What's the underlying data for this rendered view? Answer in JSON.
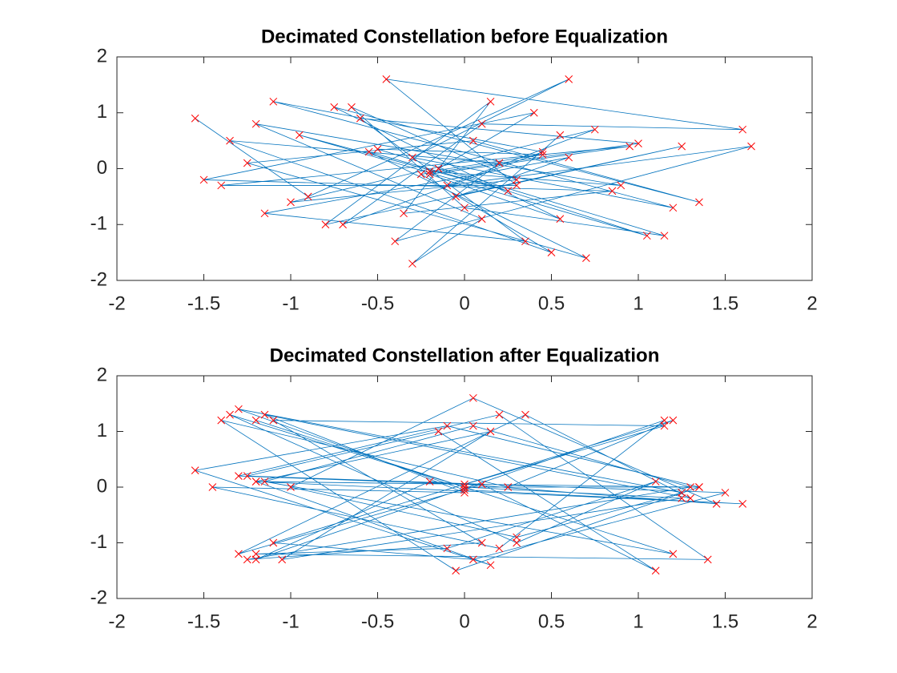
{
  "chart_data": [
    {
      "type": "line",
      "title": "Decimated Constellation before Equalization",
      "x": [
        -1.55,
        -0.9,
        0.6,
        -0.3,
        1.2,
        -1.1,
        0.45,
        -0.7,
        0.1,
        1.6,
        -0.45,
        0.3,
        -1.4,
        0.95,
        -0.2,
        0.55,
        -0.75,
        1.35,
        0.05,
        -1.25,
        0.7,
        -0.55,
        0.25,
        -0.95,
        1.05,
        -0.15,
        0.4,
        -1.5,
        0.85,
        -0.35,
        0.15,
        -0.8,
        1.25,
        -0.05,
        0.6,
        -1.15,
        0.35,
        -0.6,
        1.0,
        -0.25,
        0.5,
        -1.35,
        0.2,
        -0.4,
        1.65,
        -0.1,
        0.75,
        -1.0,
        0.3,
        -0.65,
        0.0,
        1.15,
        -0.5,
        0.45,
        -0.2,
        0.9,
        -1.2,
        0.1,
        -0.3,
        0.55
      ],
      "series": [
        {
          "color": "#0072bd",
          "marker": "x",
          "marker_color": "#ff0000",
          "values": [
            0.9,
            -0.5,
            1.6,
            0.2,
            -0.7,
            1.2,
            0.3,
            -1.0,
            0.8,
            0.7,
            1.6,
            -0.3,
            -0.3,
            0.4,
            -0.1,
            -0.9,
            1.1,
            -0.6,
            0.5,
            0.1,
            -1.6,
            0.3,
            -0.4,
            0.6,
            -1.2,
            0.0,
            1.0,
            -0.2,
            -0.4,
            -0.8,
            1.2,
            -1.0,
            0.4,
            -0.5,
            0.2,
            -0.8,
            -1.3,
            0.9,
            0.45,
            -0.1,
            -1.5,
            0.5,
            0.1,
            -1.3,
            0.4,
            -0.3,
            0.7,
            -0.6,
            -0.2,
            1.1,
            -0.7,
            -1.2,
            0.35,
            0.25,
            -0.05,
            -0.3,
            0.8,
            -0.9,
            -1.7,
            0.6
          ]
        }
      ],
      "xlim": [
        -2,
        2
      ],
      "xticks": [
        -2,
        -1.5,
        -1,
        -0.5,
        0,
        0.5,
        1,
        1.5,
        2
      ],
      "ylim": [
        -2,
        2
      ],
      "yticks": [
        -2,
        -1,
        0,
        1,
        2
      ],
      "grid": false
    },
    {
      "type": "line",
      "title": "Decimated Constellation after Equalization",
      "x": [
        -1.2,
        0.0,
        1.2,
        -1.15,
        0.05,
        1.3,
        -1.25,
        0.1,
        -1.1,
        1.15,
        0.0,
        -1.3,
        0.2,
        1.4,
        -1.2,
        -0.1,
        1.1,
        0.3,
        -1.35,
        0.0,
        1.25,
        -1.05,
        0.15,
        -1.2,
        1.35,
        -0.05,
        -1.4,
        0.25,
        1.2,
        -1.1,
        0.05,
        1.5,
        -1.25,
        -0.15,
        1.1,
        0.1,
        -1.3,
        0.35,
        1.3,
        -1.15,
        0.0,
        -1.45,
        0.2,
        1.15,
        -1.2,
        -0.2,
        1.45,
        0.05,
        -1.0,
        0.3,
        1.25,
        -1.3,
        0.0,
        1.6,
        -1.2,
        0.15,
        -1.55,
        -0.1,
        1.35,
        0.0
      ],
      "series": [
        {
          "color": "#0072bd",
          "marker": "x",
          "marker_color": "#ff0000",
          "values": [
            1.2,
            0.0,
            -1.2,
            0.1,
            1.1,
            0.0,
            -1.3,
            -1.0,
            1.2,
            1.1,
            0.05,
            0.2,
            1.3,
            -1.3,
            -1.2,
            -1.1,
            0.1,
            -1.0,
            1.3,
            0.0,
            -0.2,
            -1.3,
            1.0,
            0.1,
            0.0,
            -1.5,
            1.2,
            0.0,
            1.2,
            -1.0,
            -1.3,
            -0.1,
            0.2,
            1.0,
            -1.5,
            0.05,
            -1.2,
            1.3,
            -0.2,
            1.3,
            -0.1,
            0.0,
            -1.1,
            1.2,
            -1.3,
            0.1,
            -0.3,
            1.6,
            0.0,
            -0.9,
            -0.1,
            1.4,
            -0.05,
            -0.3,
            0.1,
            -1.4,
            0.3,
            1.1,
            0.0,
            0.0
          ]
        }
      ],
      "xlim": [
        -2,
        2
      ],
      "xticks": [
        -2,
        -1.5,
        -1,
        -0.5,
        0,
        0.5,
        1,
        1.5,
        2
      ],
      "ylim": [
        -2,
        2
      ],
      "yticks": [
        -2,
        -1,
        0,
        1,
        2
      ],
      "grid": false
    }
  ]
}
